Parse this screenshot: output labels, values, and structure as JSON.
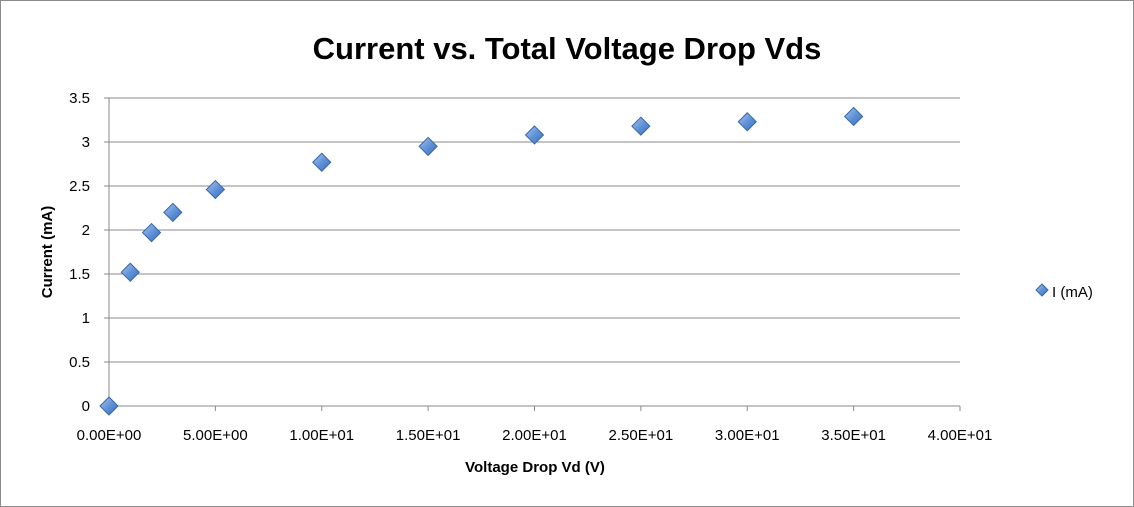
{
  "chart_data": {
    "type": "scatter",
    "title": "Current vs. Total Voltage Drop Vds",
    "xlabel": "Voltage Drop Vd (V)",
    "ylabel": "Current (mA)",
    "xlim": [
      0,
      40
    ],
    "ylim": [
      0,
      3.5
    ],
    "x_ticks": [
      0,
      5,
      10,
      15,
      20,
      25,
      30,
      35,
      40
    ],
    "x_tick_labels": [
      "0.00E+00",
      "5.00E+00",
      "1.00E+01",
      "1.50E+01",
      "2.00E+01",
      "2.50E+01",
      "3.00E+01",
      "3.50E+01",
      "4.00E+01"
    ],
    "y_ticks": [
      0,
      0.5,
      1,
      1.5,
      2,
      2.5,
      3,
      3.5
    ],
    "y_tick_labels": [
      "0",
      "0.5",
      "1",
      "1.5",
      "2",
      "2.5",
      "3",
      "3.5"
    ],
    "grid": "horizontal",
    "legend_position": "right",
    "series": [
      {
        "name": "I (mA)",
        "marker": "diamond",
        "color": "#5b8fd6",
        "x": [
          0,
          1,
          2,
          3,
          5,
          10,
          15,
          20,
          25,
          30,
          35
        ],
        "y": [
          0,
          1.52,
          1.97,
          2.2,
          2.46,
          2.77,
          2.95,
          3.08,
          3.18,
          3.23,
          3.29
        ]
      }
    ]
  }
}
